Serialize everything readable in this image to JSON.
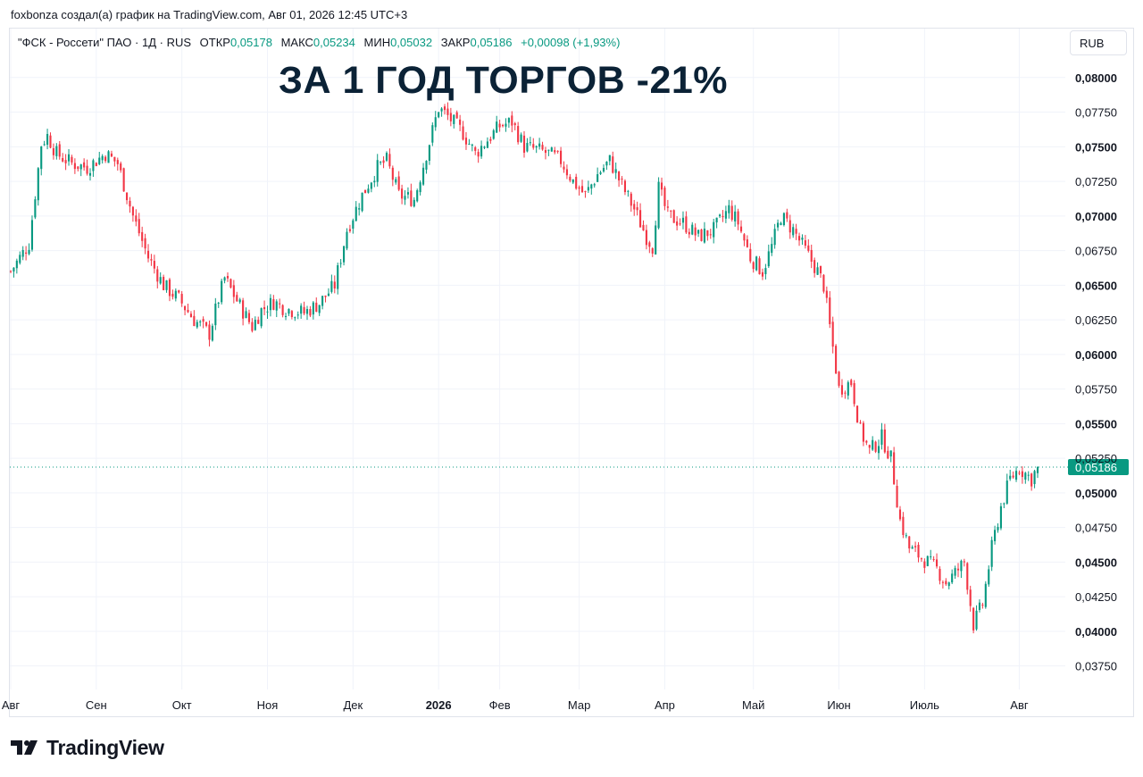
{
  "attribution": "foxbonza создал(а) график на TradingView.com, Авг 01, 2026 12:45 UTC+3",
  "legend": {
    "symbol": "\"ФСК - Россети\" ПАО · 1Д · RUS",
    "open_label": "ОТКР",
    "open": "0,05178",
    "high_label": "МАКС",
    "high": "0,05234",
    "low_label": "МИН",
    "low": "0,05032",
    "close_label": "ЗАКР",
    "close": "0,05186",
    "change": "+0,00098 (+1,93%)"
  },
  "headline": "ЗА 1 ГОД ТОРГОВ -21%",
  "currency": "RUB",
  "brand": "TradingView",
  "colors": {
    "up": "#089981",
    "down": "#f23645",
    "grid": "#f0f3fa",
    "headline": "#0b2236"
  },
  "chart_data": {
    "type": "candlestick",
    "x_labels": [
      "Авг",
      "Сен",
      "Окт",
      "Ноя",
      "Дек",
      "2026",
      "Фев",
      "Мар",
      "Апр",
      "Май",
      "Июн",
      "Июль",
      "Авг"
    ],
    "y_ticks": [
      "0,08000",
      "0,07750",
      "0,07500",
      "0,07250",
      "0,07000",
      "0,06750",
      "0,06500",
      "0,06250",
      "0,06000",
      "0,05750",
      "0,05500",
      "0,05250",
      "0,05000",
      "0,04750",
      "0,04500",
      "0,04250",
      "0,04000",
      "0,03750"
    ],
    "y_range": [
      0.0358,
      0.0816
    ],
    "last_price": 0.05186,
    "last_price_label": "0,05186",
    "trend_path": [
      [
        0,
        0.066
      ],
      [
        6,
        0.068
      ],
      [
        10,
        0.0752
      ],
      [
        12,
        0.0758
      ],
      [
        15,
        0.0745
      ],
      [
        20,
        0.0738
      ],
      [
        25,
        0.0735
      ],
      [
        31,
        0.0745
      ],
      [
        35,
        0.0738
      ],
      [
        40,
        0.07
      ],
      [
        45,
        0.067
      ],
      [
        50,
        0.065
      ],
      [
        55,
        0.064
      ],
      [
        60,
        0.0625
      ],
      [
        65,
        0.0615
      ],
      [
        68,
        0.064
      ],
      [
        70,
        0.0655
      ],
      [
        75,
        0.0635
      ],
      [
        79,
        0.062
      ],
      [
        82,
        0.0632
      ],
      [
        86,
        0.0638
      ],
      [
        90,
        0.0633
      ],
      [
        96,
        0.063
      ],
      [
        101,
        0.0637
      ],
      [
        106,
        0.065
      ],
      [
        110,
        0.069
      ],
      [
        115,
        0.0715
      ],
      [
        120,
        0.0735
      ],
      [
        123,
        0.074
      ],
      [
        127,
        0.0715
      ],
      [
        132,
        0.0712
      ],
      [
        136,
        0.0745
      ],
      [
        140,
        0.0778
      ],
      [
        143,
        0.0772
      ],
      [
        148,
        0.076
      ],
      [
        152,
        0.0745
      ],
      [
        156,
        0.0755
      ],
      [
        160,
        0.0765
      ],
      [
        164,
        0.0768
      ],
      [
        168,
        0.075
      ],
      [
        172,
        0.0748
      ],
      [
        176,
        0.0745
      ],
      [
        180,
        0.074
      ],
      [
        184,
        0.0725
      ],
      [
        188,
        0.0715
      ],
      [
        192,
        0.073
      ],
      [
        196,
        0.074
      ],
      [
        200,
        0.0722
      ],
      [
        204,
        0.0705
      ],
      [
        208,
        0.0685
      ],
      [
        210,
        0.0678
      ],
      [
        212,
        0.072
      ],
      [
        215,
        0.07
      ],
      [
        220,
        0.0695
      ],
      [
        225,
        0.0685
      ],
      [
        230,
        0.069
      ],
      [
        235,
        0.0705
      ],
      [
        238,
        0.0695
      ],
      [
        242,
        0.067
      ],
      [
        246,
        0.066
      ],
      [
        249,
        0.0678
      ],
      [
        252,
        0.07
      ],
      [
        256,
        0.069
      ],
      [
        260,
        0.0675
      ],
      [
        264,
        0.066
      ],
      [
        266,
        0.065
      ],
      [
        268,
        0.062
      ],
      [
        271,
        0.0575
      ],
      [
        275,
        0.058
      ],
      [
        278,
        0.0545
      ],
      [
        281,
        0.053
      ],
      [
        285,
        0.054
      ],
      [
        288,
        0.0525
      ],
      [
        291,
        0.048
      ],
      [
        294,
        0.046
      ],
      [
        297,
        0.0455
      ],
      [
        300,
        0.045
      ],
      [
        303,
        0.0445
      ],
      [
        306,
        0.0435
      ],
      [
        309,
        0.0442
      ],
      [
        312,
        0.045
      ],
      [
        315,
        0.0405
      ],
      [
        318,
        0.042
      ],
      [
        321,
        0.046
      ],
      [
        324,
        0.049
      ],
      [
        327,
        0.051
      ],
      [
        330,
        0.0518
      ],
      [
        334,
        0.051
      ],
      [
        336,
        0.0519
      ]
    ]
  }
}
